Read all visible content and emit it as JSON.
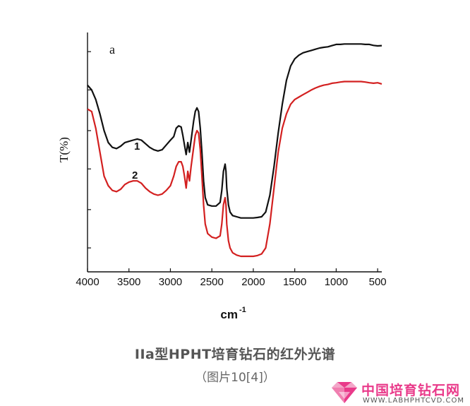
{
  "chart_data": {
    "type": "line",
    "panel_label": "a",
    "ylabel": "T(%)",
    "xlabel": "cm",
    "xlabel_superscript": "-1",
    "x_reversed": true,
    "xlim": [
      4000,
      450
    ],
    "ylim": [
      0,
      100
    ],
    "x_ticks": [
      4000,
      3500,
      3000,
      2500,
      2000,
      1500,
      1000,
      500
    ],
    "y_ticks_unlabeled": [
      10,
      26,
      43,
      59,
      76,
      92
    ],
    "grid": false,
    "series": [
      {
        "name": "1",
        "color": "#111111",
        "x": [
          4000,
          3950,
          3900,
          3850,
          3800,
          3750,
          3700,
          3650,
          3600,
          3550,
          3500,
          3450,
          3400,
          3350,
          3300,
          3250,
          3200,
          3150,
          3100,
          3050,
          3000,
          2960,
          2930,
          2900,
          2870,
          2850,
          2830,
          2810,
          2790,
          2770,
          2750,
          2720,
          2700,
          2680,
          2660,
          2640,
          2620,
          2600,
          2580,
          2550,
          2500,
          2450,
          2400,
          2380,
          2360,
          2340,
          2330,
          2320,
          2300,
          2280,
          2250,
          2200,
          2150,
          2100,
          2050,
          2000,
          1950,
          1900,
          1850,
          1800,
          1750,
          1700,
          1650,
          1600,
          1550,
          1500,
          1450,
          1400,
          1350,
          1300,
          1250,
          1200,
          1150,
          1100,
          1050,
          1000,
          950,
          900,
          850,
          800,
          750,
          700,
          650,
          600,
          550,
          500,
          450
        ],
        "y": [
          78.0,
          76.0,
          72.0,
          66.0,
          59.0,
          54.0,
          52.0,
          51.5,
          52.5,
          54.0,
          54.5,
          55.0,
          55.5,
          55.0,
          53.5,
          52.0,
          51.0,
          50.5,
          51.0,
          53.0,
          55.0,
          56.5,
          60.0,
          61.0,
          60.5,
          57.0,
          53.0,
          49.0,
          54.0,
          50.0,
          55.0,
          63.0,
          67.0,
          68.5,
          67.0,
          60.0,
          50.0,
          38.0,
          31.0,
          28.0,
          27.5,
          27.5,
          29.0,
          34.0,
          42.0,
          45.0,
          42.0,
          35.0,
          28.0,
          25.0,
          23.5,
          23.0,
          22.5,
          22.5,
          22.5,
          22.5,
          22.7,
          23.0,
          25.0,
          32.0,
          44.0,
          58.0,
          70.0,
          80.0,
          86.0,
          89.0,
          90.5,
          91.5,
          92.0,
          92.5,
          93.0,
          93.5,
          93.8,
          94.0,
          94.5,
          95.0,
          95.0,
          95.2,
          95.2,
          95.2,
          95.2,
          95.2,
          95.0,
          95.0,
          94.6,
          94.4,
          94.5
        ]
      },
      {
        "name": "2",
        "color": "#d32020",
        "x": [
          4000,
          3950,
          3900,
          3850,
          3800,
          3750,
          3700,
          3650,
          3600,
          3550,
          3500,
          3450,
          3400,
          3350,
          3300,
          3250,
          3200,
          3150,
          3100,
          3050,
          3000,
          2960,
          2930,
          2900,
          2870,
          2850,
          2830,
          2810,
          2790,
          2770,
          2750,
          2720,
          2700,
          2680,
          2660,
          2640,
          2620,
          2600,
          2580,
          2550,
          2500,
          2450,
          2400,
          2380,
          2360,
          2340,
          2330,
          2320,
          2300,
          2280,
          2250,
          2200,
          2150,
          2100,
          2050,
          2000,
          1950,
          1900,
          1850,
          1800,
          1750,
          1700,
          1650,
          1600,
          1550,
          1500,
          1450,
          1400,
          1350,
          1300,
          1250,
          1200,
          1150,
          1100,
          1050,
          1000,
          950,
          900,
          850,
          800,
          750,
          700,
          650,
          600,
          550,
          500,
          450
        ],
        "y": [
          68.0,
          67.0,
          60.0,
          50.0,
          40.0,
          36.0,
          34.0,
          33.5,
          34.5,
          36.5,
          37.5,
          38.0,
          38.0,
          37.0,
          35.0,
          33.5,
          32.5,
          32.0,
          32.5,
          34.0,
          36.0,
          40.0,
          44.0,
          46.0,
          46.0,
          44.0,
          40.0,
          35.0,
          42.0,
          38.0,
          44.0,
          52.0,
          57.0,
          59.0,
          58.0,
          51.0,
          40.0,
          28.0,
          20.0,
          16.0,
          14.5,
          14.0,
          15.0,
          20.0,
          28.0,
          31.0,
          28.0,
          20.0,
          13.0,
          10.0,
          8.0,
          7.0,
          6.5,
          6.5,
          6.5,
          6.5,
          6.8,
          7.5,
          10.0,
          20.0,
          35.0,
          50.0,
          60.0,
          66.0,
          70.0,
          72.0,
          73.0,
          74.0,
          75.0,
          76.0,
          76.8,
          77.5,
          78.0,
          78.3,
          78.8,
          79.0,
          79.3,
          79.5,
          79.5,
          79.5,
          79.5,
          79.5,
          79.3,
          79.0,
          78.8,
          79.0,
          78.5
        ]
      }
    ]
  },
  "caption": {
    "title": "IIa型HPHT培育钻石的红外光谱",
    "subtitle": "（图片10[4]）"
  },
  "logo": {
    "name": "中国培育钻石网",
    "url": "WWW.LABHPHTCVD.COM",
    "accent_color": "#e93a8a"
  }
}
